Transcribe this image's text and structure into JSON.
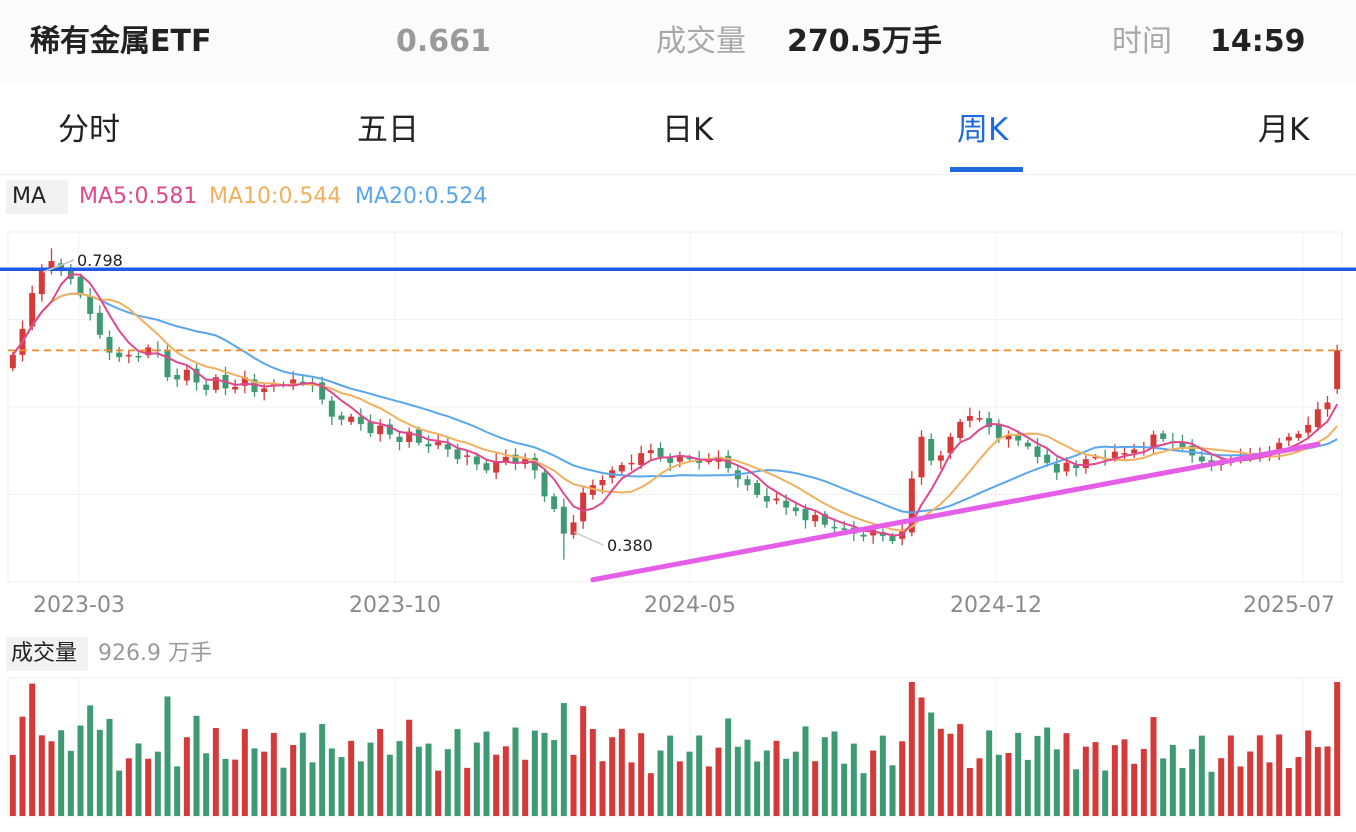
{
  "header": {
    "name": "稀有金属ETF",
    "price": "0.661",
    "volume_label": "成交量",
    "volume": "270.5万手",
    "time_label": "时间",
    "time": "14:59"
  },
  "tabs": [
    {
      "label": "分时",
      "active": false
    },
    {
      "label": "五日",
      "active": false
    },
    {
      "label": "日K",
      "active": false
    },
    {
      "label": "周K",
      "active": true
    },
    {
      "label": "月K",
      "active": false
    }
  ],
  "ma_legend": {
    "label": "MA",
    "items": [
      {
        "text": "MA5:0.581",
        "color": "#e0488e"
      },
      {
        "text": "MA10:0.544",
        "color": "#f0b060"
      },
      {
        "text": "MA20:0.524",
        "color": "#5aa6ec"
      }
    ]
  },
  "volume_legend": {
    "label": "成交量",
    "value": "926.9 万手"
  },
  "colors": {
    "up": "#d43a3a",
    "down": "#3d9a72",
    "ma5": "#e0488e",
    "ma10": "#f0b060",
    "ma20": "#5aa6ec",
    "resistance": "#1e5ae6",
    "price_line": "#f08a2c",
    "trendline": "#e55ee8",
    "accent": "#1f6ae0"
  },
  "chart_data": {
    "type": "candlestick",
    "interval": "weekly",
    "x_ticks": [
      "2023-03",
      "2023-10",
      "2024-05",
      "2024-12",
      "2025-07"
    ],
    "annotations": {
      "high": "0.798",
      "low": "0.380"
    },
    "price_range": [
      0.35,
      0.82
    ],
    "horizontal_lines": [
      {
        "role": "resistance",
        "value": 0.77,
        "style": "solid",
        "color": "#1e5ae6"
      },
      {
        "role": "current-price",
        "value": 0.661,
        "style": "dashed",
        "color": "#f08a2c"
      }
    ],
    "trendline": {
      "from": {
        "index": 60,
        "value": 0.353
      },
      "to": {
        "index": 133,
        "value": 0.535
      },
      "color": "#e55ee8"
    },
    "closes": [
      0.655,
      0.69,
      0.738,
      0.768,
      0.781,
      0.772,
      0.757,
      0.735,
      0.71,
      0.682,
      0.658,
      0.652,
      0.655,
      0.653,
      0.665,
      0.66,
      0.625,
      0.622,
      0.635,
      0.618,
      0.608,
      0.625,
      0.61,
      0.612,
      0.625,
      0.605,
      0.61,
      0.617,
      0.615,
      0.622,
      0.618,
      0.615,
      0.595,
      0.572,
      0.568,
      0.572,
      0.562,
      0.55,
      0.56,
      0.548,
      0.538,
      0.552,
      0.537,
      0.532,
      0.538,
      0.528,
      0.515,
      0.52,
      0.508,
      0.5,
      0.512,
      0.518,
      0.51,
      0.515,
      0.5,
      0.465,
      0.448,
      0.415,
      0.43,
      0.47,
      0.48,
      0.487,
      0.5,
      0.507,
      0.51,
      0.523,
      0.527,
      0.518,
      0.51,
      0.52,
      0.515,
      0.51,
      0.513,
      0.518,
      0.503,
      0.488,
      0.48,
      0.467,
      0.458,
      0.462,
      0.45,
      0.445,
      0.433,
      0.44,
      0.427,
      0.422,
      0.42,
      0.415,
      0.411,
      0.42,
      0.412,
      0.405,
      0.418,
      0.489,
      0.545,
      0.513,
      0.52,
      0.545,
      0.565,
      0.573,
      0.57,
      0.558,
      0.543,
      0.547,
      0.54,
      0.532,
      0.518,
      0.51,
      0.497,
      0.51,
      0.503,
      0.515,
      0.518,
      0.515,
      0.525,
      0.523,
      0.528,
      0.532,
      0.548,
      0.542,
      0.538,
      0.53,
      0.52,
      0.512,
      0.51,
      0.51,
      0.515,
      0.518,
      0.52,
      0.522,
      0.525,
      0.537,
      0.545,
      0.549,
      0.561,
      0.582,
      0.591,
      0.661
    ],
    "volume_unit": "万手",
    "volume_max": 926.9
  }
}
